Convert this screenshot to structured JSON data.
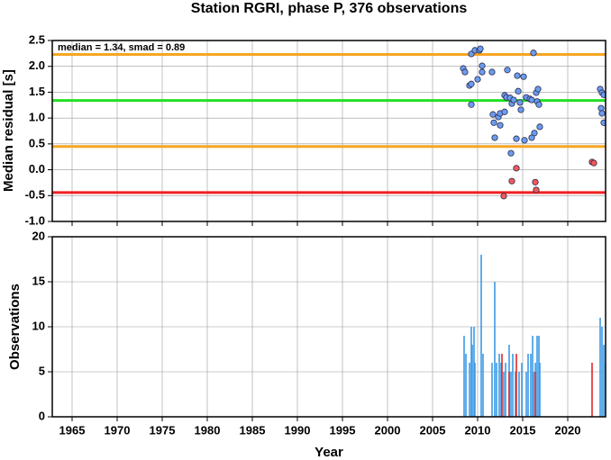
{
  "chart_data": [
    {
      "type": "scatter",
      "title": "Station RGRI, phase P, 376 observations",
      "ylabel": "Median residual [s]",
      "annotation": "median = 1.34, smad = 0.89",
      "xlim": [
        1962.8,
        2024.2
      ],
      "xticks": [
        1965,
        1970,
        1975,
        1980,
        1985,
        1990,
        1995,
        2000,
        2005,
        2010,
        2015,
        2020
      ],
      "ylim": [
        -1.0,
        2.5
      ],
      "yticks": [
        {
          "value": -1,
          "label": "-1.0"
        },
        -0.5,
        {
          "value": 0,
          "label": "0.0"
        },
        0.5,
        {
          "value": 1,
          "label": "1.0"
        },
        1.5,
        {
          "value": 2,
          "label": "2.0"
        },
        2.5
      ],
      "grid": true,
      "reference_lines": [
        {
          "value": 2.23,
          "color": "#f5a623"
        },
        {
          "value": 1.34,
          "color": "#22e022"
        },
        {
          "value": 0.45,
          "color": "#f5a623"
        },
        {
          "value": -0.44,
          "color": "#f02020"
        }
      ],
      "series": [
        {
          "color": "#6b9cf0",
          "x": [
            2008.4,
            2008.6,
            2009.1,
            2009.3,
            2009.3,
            2009.7,
            2009.3,
            2010.0,
            2010.2,
            2010.3,
            2010.5,
            2010.5,
            2011.6,
            2011.7,
            2011.8,
            2011.9,
            2012.3,
            2012.5,
            2013.0,
            2012.5,
            2013.0,
            2013.2,
            2013.3,
            2013.7,
            2013.6,
            2013.8,
            2014.0,
            2014.3,
            2014.4,
            2014.5,
            2014.7,
            2014.8,
            2015.1,
            2015.2,
            2015.4,
            2015.8,
            2016.0,
            2016.0,
            2016.2,
            2016.3,
            2016.5,
            2016.6,
            2016.7,
            2016.8,
            2016.9,
            2023.6,
            2023.8,
            2023.7,
            2024.0,
            2024.0,
            2023.8
          ],
          "values": [
            1.96,
            1.89,
            1.63,
            1.66,
            2.24,
            2.31,
            1.26,
            1.75,
            2.31,
            2.34,
            2.01,
            1.89,
            1.89,
            1.07,
            0.91,
            0.62,
            1.02,
            1.09,
            1.12,
            0.86,
            1.44,
            1.4,
            1.93,
            0.32,
            1.39,
            1.28,
            1.35,
            0.6,
            1.82,
            1.52,
            1.3,
            1.16,
            1.8,
            0.57,
            1.4,
            1.37,
            1.35,
            0.62,
            2.26,
            0.71,
            1.49,
            1.32,
            1.56,
            1.26,
            0.83,
            1.56,
            1.49,
            1.19,
            1.45,
            0.91,
            1.09
          ]
        },
        {
          "color": "#f05a5a",
          "x": [
            2012.9,
            2013.8,
            2014.3,
            2016.4,
            2016.5,
            2022.7,
            2022.9
          ],
          "values": [
            -0.51,
            -0.22,
            0.03,
            -0.24,
            -0.39,
            0.15,
            0.13
          ]
        }
      ]
    },
    {
      "type": "bar",
      "ylabel": "Observations",
      "xlabel": "Year",
      "xlim": [
        1962.8,
        2024.2
      ],
      "xticks": [
        1965,
        1970,
        1975,
        1980,
        1985,
        1990,
        1995,
        2000,
        2005,
        2010,
        2015,
        2020
      ],
      "ylim": [
        0,
        20
      ],
      "yticks": [
        0,
        5,
        10,
        15,
        20
      ],
      "grid": true,
      "series": [
        {
          "color": "#3c9be6",
          "x": [
            2008.5,
            2008.7,
            2009.1,
            2009.3,
            2009.4,
            2009.6,
            2009.7,
            2010.4,
            2010.6,
            2011.6,
            2011.9,
            2012.1,
            2012.4,
            2012.6,
            2012.9,
            2013.1,
            2013.5,
            2013.7,
            2013.9,
            2014.2,
            2014.6,
            2014.9,
            2015.4,
            2015.6,
            2015.9,
            2016.1,
            2016.2,
            2016.4,
            2016.6,
            2016.8,
            2016.9,
            2023.6,
            2023.8,
            2024.0,
            2024.2
          ],
          "values": [
            9,
            7,
            6,
            10,
            8,
            10,
            6,
            18,
            7,
            6,
            15,
            6,
            7,
            6,
            5,
            6,
            8,
            5,
            7,
            5,
            5,
            6,
            5,
            7,
            7,
            9,
            5,
            6,
            9,
            9,
            6,
            11,
            10,
            8,
            6
          ]
        },
        {
          "color": "#e02828",
          "x": [
            2012.7,
            2013.5,
            2014.3,
            2016.4,
            2022.7
          ],
          "values": [
            7,
            5,
            7,
            5,
            6
          ]
        }
      ]
    }
  ]
}
